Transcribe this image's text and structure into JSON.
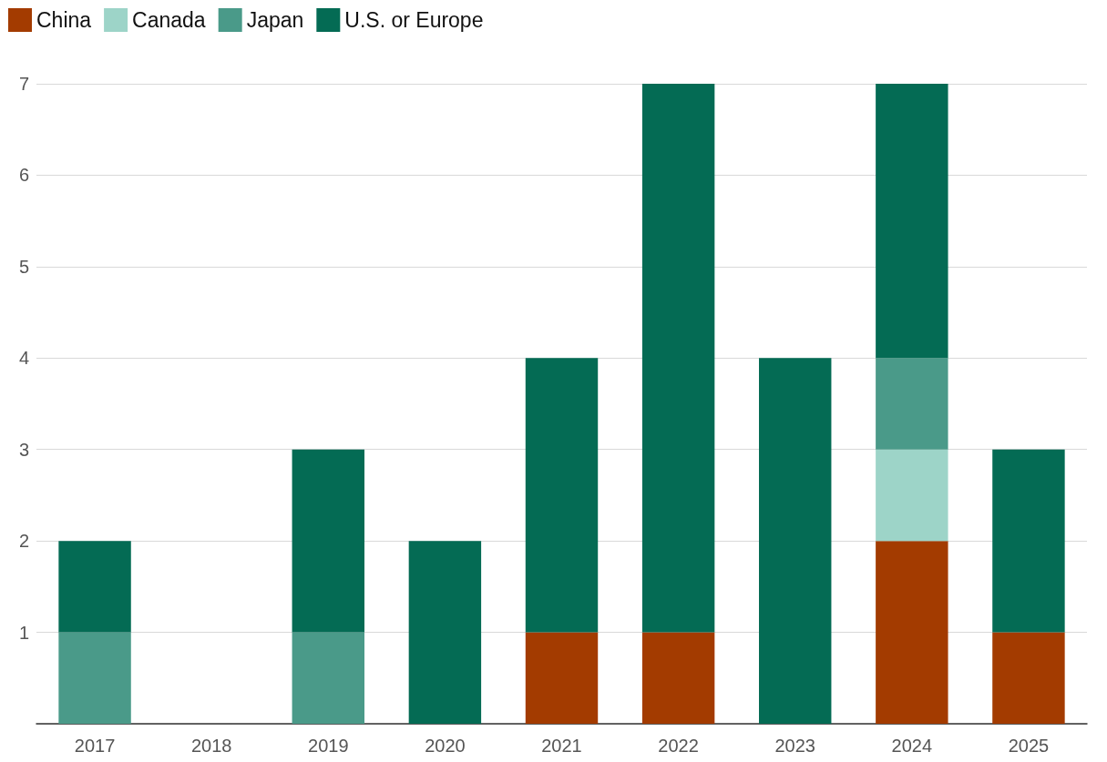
{
  "chart_data": {
    "type": "bar",
    "stacked": true,
    "categories": [
      "2017",
      "2018",
      "2019",
      "2020",
      "2021",
      "2022",
      "2023",
      "2024",
      "2025"
    ],
    "series": [
      {
        "name": "China",
        "color": "#a33b00",
        "values": [
          0,
          0,
          0,
          0,
          1,
          1,
          0,
          2,
          1
        ]
      },
      {
        "name": "Canada",
        "color": "#9dd4c8",
        "values": [
          0,
          0,
          0,
          0,
          0,
          0,
          0,
          1,
          0
        ]
      },
      {
        "name": "Japan",
        "color": "#4a9a89",
        "values": [
          1,
          0,
          1,
          0,
          0,
          0,
          0,
          1,
          0
        ]
      },
      {
        "name": "U.S. or Europe",
        "color": "#046b54",
        "values": [
          1,
          0,
          2,
          2,
          3,
          6,
          4,
          3,
          2
        ]
      }
    ],
    "ylim": [
      0,
      7
    ],
    "yticks": [
      {
        "value": 0,
        "label": null
      },
      1,
      2,
      3,
      4,
      5,
      6,
      7
    ],
    "grid": "y",
    "legend": "top left"
  }
}
